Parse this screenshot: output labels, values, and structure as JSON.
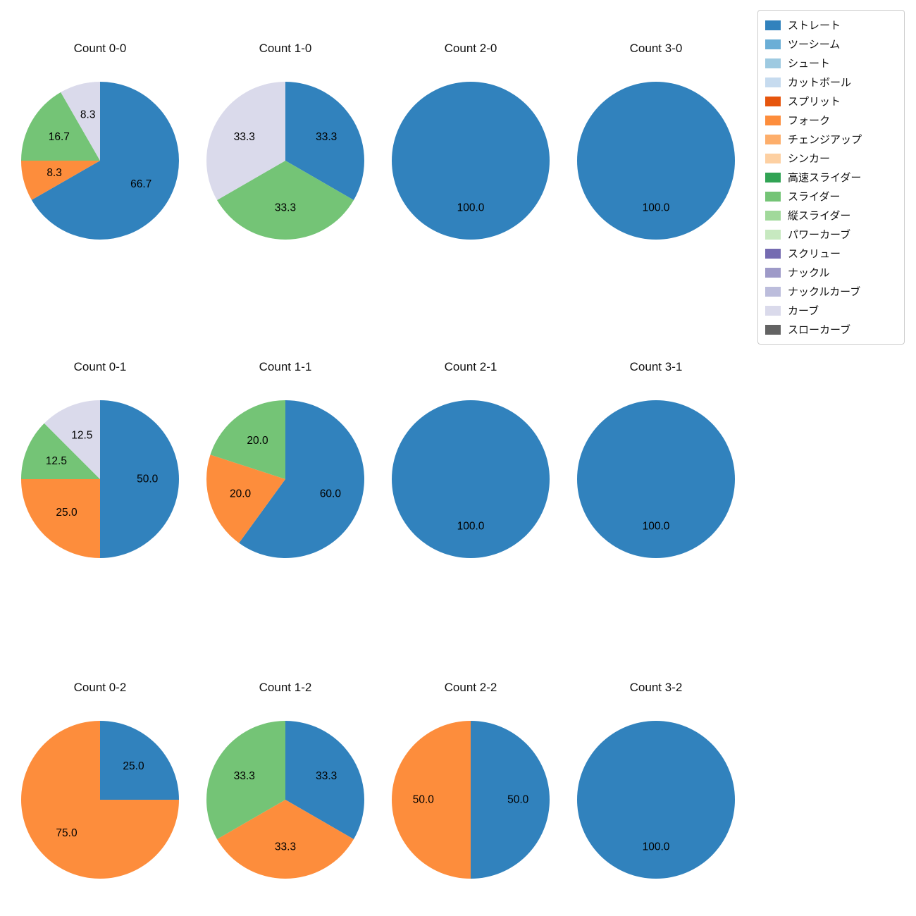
{
  "figure": {
    "background": "#ffffff"
  },
  "legend": {
    "position": "top-right",
    "items": [
      {
        "label": "ストレート",
        "color": "#3182bd"
      },
      {
        "label": "ツーシーム",
        "color": "#6baed6"
      },
      {
        "label": "シュート",
        "color": "#9ecae1"
      },
      {
        "label": "カットボール",
        "color": "#c6dbef"
      },
      {
        "label": "スプリット",
        "color": "#e6550d"
      },
      {
        "label": "フォーク",
        "color": "#fd8d3c"
      },
      {
        "label": "チェンジアップ",
        "color": "#fdae6b"
      },
      {
        "label": "シンカー",
        "color": "#fdd0a2"
      },
      {
        "label": "高速スライダー",
        "color": "#31a354"
      },
      {
        "label": "スライダー",
        "color": "#74c476"
      },
      {
        "label": "縦スライダー",
        "color": "#a1d99b"
      },
      {
        "label": "パワーカーブ",
        "color": "#c7e9c0"
      },
      {
        "label": "スクリュー",
        "color": "#756bb1"
      },
      {
        "label": "ナックル",
        "color": "#9e9ac8"
      },
      {
        "label": "ナックルカーブ",
        "color": "#bcbddc"
      },
      {
        "label": "カーブ",
        "color": "#dadaeb"
      },
      {
        "label": "スローカーブ",
        "color": "#636363"
      }
    ]
  },
  "chart_data": [
    {
      "type": "pie",
      "title": "Count 0-0",
      "start_angle": 90,
      "direction": "clockwise",
      "slices": [
        {
          "label": "ストレート",
          "value": 66.7
        },
        {
          "label": "フォーク",
          "value": 8.3
        },
        {
          "label": "スライダー",
          "value": 16.7
        },
        {
          "label": "カーブ",
          "value": 8.3
        }
      ]
    },
    {
      "type": "pie",
      "title": "Count 1-0",
      "start_angle": 90,
      "direction": "clockwise",
      "slices": [
        {
          "label": "ストレート",
          "value": 33.3
        },
        {
          "label": "スライダー",
          "value": 33.3
        },
        {
          "label": "カーブ",
          "value": 33.3
        }
      ]
    },
    {
      "type": "pie",
      "title": "Count 2-0",
      "start_angle": 90,
      "direction": "clockwise",
      "slices": [
        {
          "label": "ストレート",
          "value": 100.0
        }
      ]
    },
    {
      "type": "pie",
      "title": "Count 3-0",
      "start_angle": 90,
      "direction": "clockwise",
      "slices": [
        {
          "label": "ストレート",
          "value": 100.0
        }
      ]
    },
    {
      "type": "pie",
      "title": "Count 0-1",
      "start_angle": 90,
      "direction": "clockwise",
      "slices": [
        {
          "label": "ストレート",
          "value": 50.0
        },
        {
          "label": "フォーク",
          "value": 25.0
        },
        {
          "label": "スライダー",
          "value": 12.5
        },
        {
          "label": "カーブ",
          "value": 12.5
        }
      ]
    },
    {
      "type": "pie",
      "title": "Count 1-1",
      "start_angle": 90,
      "direction": "clockwise",
      "slices": [
        {
          "label": "ストレート",
          "value": 60.0
        },
        {
          "label": "フォーク",
          "value": 20.0
        },
        {
          "label": "スライダー",
          "value": 20.0
        }
      ]
    },
    {
      "type": "pie",
      "title": "Count 2-1",
      "start_angle": 90,
      "direction": "clockwise",
      "slices": [
        {
          "label": "ストレート",
          "value": 100.0
        }
      ]
    },
    {
      "type": "pie",
      "title": "Count 3-1",
      "start_angle": 90,
      "direction": "clockwise",
      "slices": [
        {
          "label": "ストレート",
          "value": 100.0
        }
      ]
    },
    {
      "type": "pie",
      "title": "Count 0-2",
      "start_angle": 90,
      "direction": "clockwise",
      "slices": [
        {
          "label": "ストレート",
          "value": 25.0
        },
        {
          "label": "フォーク",
          "value": 75.0
        }
      ]
    },
    {
      "type": "pie",
      "title": "Count 1-2",
      "start_angle": 90,
      "direction": "clockwise",
      "slices": [
        {
          "label": "ストレート",
          "value": 33.3
        },
        {
          "label": "フォーク",
          "value": 33.3
        },
        {
          "label": "スライダー",
          "value": 33.3
        }
      ]
    },
    {
      "type": "pie",
      "title": "Count 2-2",
      "start_angle": 90,
      "direction": "clockwise",
      "slices": [
        {
          "label": "ストレート",
          "value": 50.0
        },
        {
          "label": "フォーク",
          "value": 50.0
        }
      ]
    },
    {
      "type": "pie",
      "title": "Count 3-2",
      "start_angle": 90,
      "direction": "clockwise",
      "slices": [
        {
          "label": "ストレート",
          "value": 100.0
        }
      ]
    }
  ]
}
